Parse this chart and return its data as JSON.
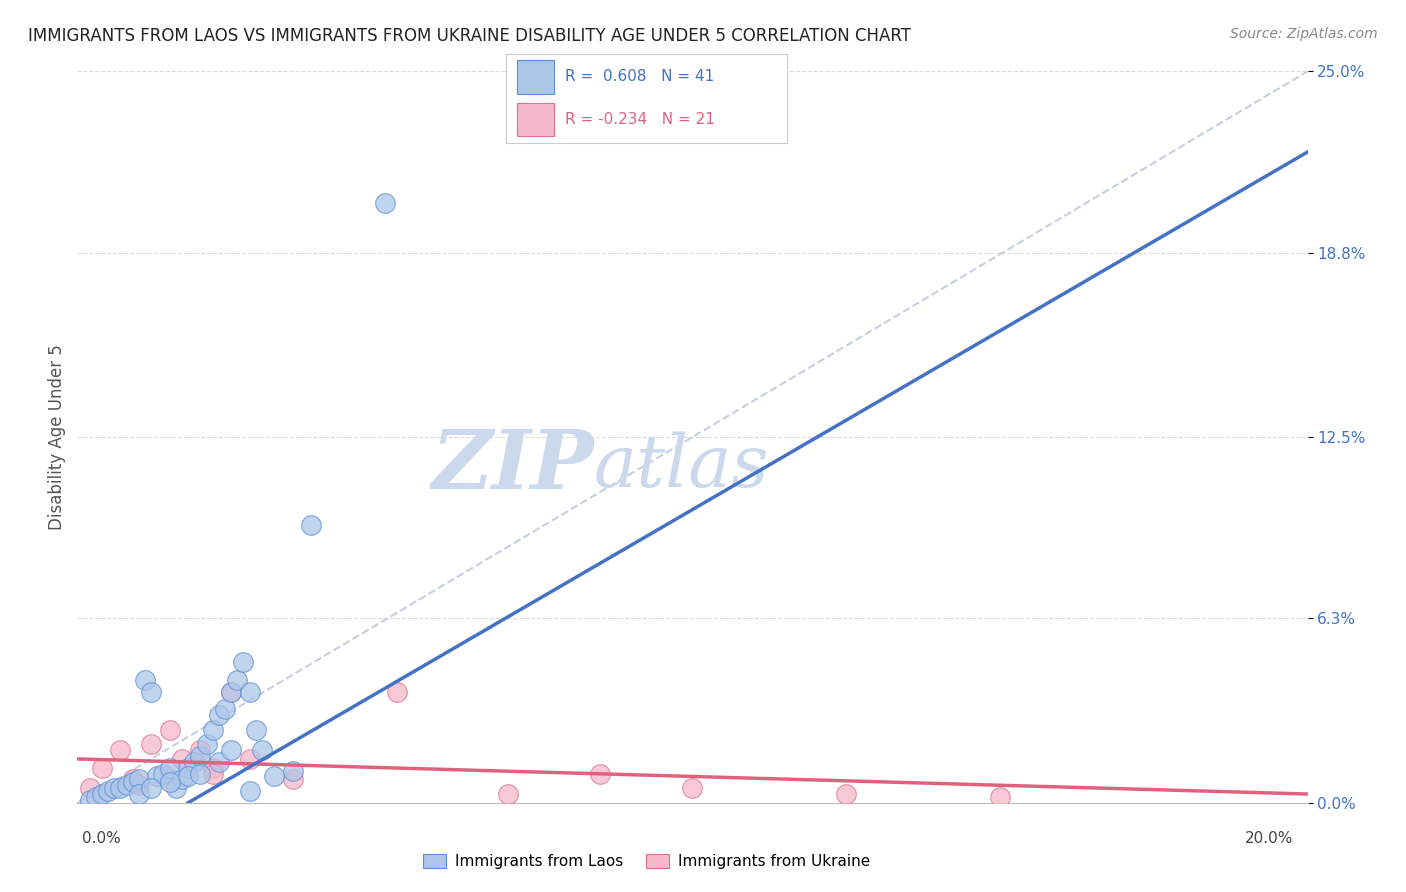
{
  "title": "IMMIGRANTS FROM LAOS VS IMMIGRANTS FROM UKRAINE DISABILITY AGE UNDER 5 CORRELATION CHART",
  "source": "Source: ZipAtlas.com",
  "ylabel": "Disability Age Under 5",
  "ytick_values": [
    0.0,
    6.3,
    12.5,
    18.8,
    25.0
  ],
  "xlim": [
    0.0,
    20.0
  ],
  "ylim": [
    0.0,
    25.0
  ],
  "laos_R": 0.608,
  "laos_N": 41,
  "ukraine_R": -0.234,
  "ukraine_N": 21,
  "laos_fill": "#adc6e8",
  "laos_edge": "#5b8fd4",
  "laos_line": "#4472c4",
  "ukraine_fill": "#f5b8c8",
  "ukraine_edge": "#e07090",
  "ukraine_line": "#e06080",
  "dashed_color": "#b8c4d8",
  "grid_color": "#cccccc",
  "watermark_color": "#ccd8ec",
  "bg_color": "#ffffff",
  "title_color": "#222222",
  "source_color": "#888888",
  "axis_color": "#4472c4",
  "laos_pts_x": [
    0.2,
    0.3,
    0.4,
    0.5,
    0.6,
    0.7,
    0.8,
    0.9,
    1.0,
    1.1,
    1.2,
    1.3,
    1.4,
    1.5,
    1.6,
    1.7,
    1.8,
    1.9,
    2.0,
    2.1,
    2.2,
    2.3,
    2.4,
    2.5,
    2.6,
    2.7,
    2.8,
    2.9,
    3.0,
    3.2,
    3.5,
    1.0,
    1.2,
    1.5,
    1.8,
    2.0,
    2.3,
    2.5,
    2.8,
    5.0,
    3.8
  ],
  "laos_pts_y": [
    0.1,
    0.2,
    0.3,
    0.4,
    0.5,
    0.5,
    0.6,
    0.7,
    0.8,
    4.2,
    3.8,
    0.9,
    1.0,
    1.2,
    0.5,
    0.8,
    1.2,
    1.4,
    1.6,
    2.0,
    2.5,
    3.0,
    3.2,
    3.8,
    4.2,
    4.8,
    3.8,
    2.5,
    1.8,
    0.9,
    1.1,
    0.3,
    0.5,
    0.7,
    0.9,
    1.0,
    1.4,
    1.8,
    0.4,
    20.5,
    9.5
  ],
  "ukraine_pts_x": [
    0.2,
    0.4,
    0.7,
    0.9,
    1.2,
    1.5,
    1.7,
    2.0,
    2.2,
    2.5,
    2.8,
    3.5,
    5.2,
    7.0,
    8.5,
    10.0,
    12.5,
    15.0,
    1.0,
    1.5,
    2.2
  ],
  "ukraine_pts_y": [
    0.5,
    1.2,
    1.8,
    0.8,
    2.0,
    2.5,
    1.5,
    1.8,
    1.2,
    3.8,
    1.5,
    0.8,
    3.8,
    0.3,
    1.0,
    0.5,
    0.3,
    0.2,
    0.6,
    0.8,
    1.0
  ],
  "legend_text_color": "#4472c4"
}
